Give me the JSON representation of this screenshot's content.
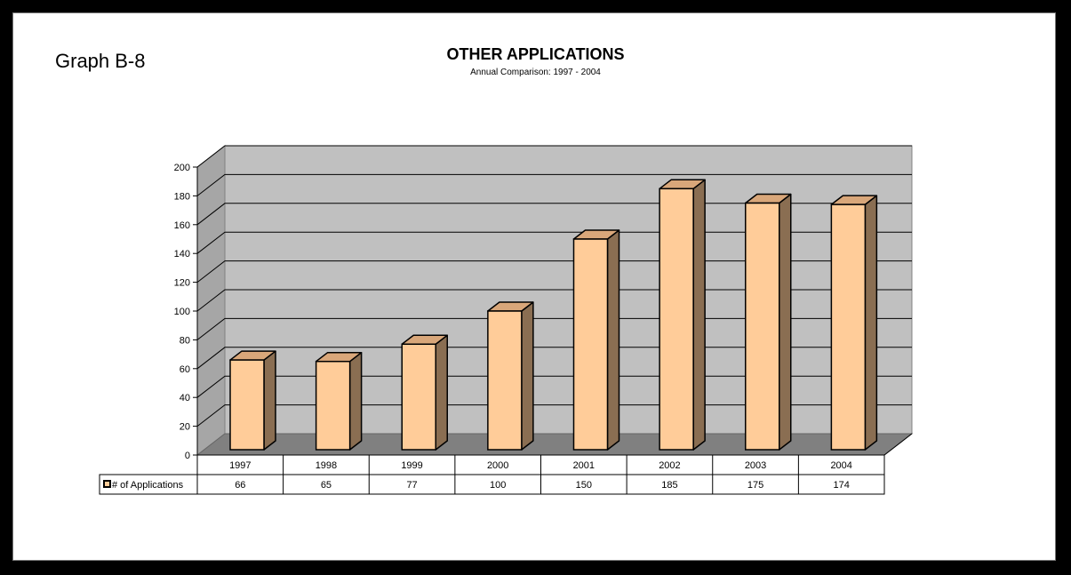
{
  "page": {
    "graph_label": "Graph B-8"
  },
  "chart_data": {
    "type": "bar",
    "title": "OTHER APPLICATIONS",
    "subtitle": "Annual Comparison:  1997 - 2004",
    "categories": [
      "1997",
      "1998",
      "1999",
      "2000",
      "2001",
      "2002",
      "2003",
      "2004"
    ],
    "series": [
      {
        "name": "# of Applications",
        "values": [
          66,
          65,
          77,
          100,
          150,
          185,
          175,
          174
        ]
      }
    ],
    "ylim": [
      0,
      200
    ],
    "yticks": [
      "0",
      "20",
      "40",
      "60",
      "80",
      "100",
      "120",
      "140",
      "160",
      "180",
      "200"
    ],
    "grid": true,
    "data_table": true,
    "style": "3d-column",
    "colors": {
      "bar_front": "#FFCC99",
      "bar_top": "#D9A77A",
      "bar_side": "#8A6E52",
      "wall": "#C0C0C0",
      "floor": "#808080",
      "frame": "#000000"
    }
  }
}
